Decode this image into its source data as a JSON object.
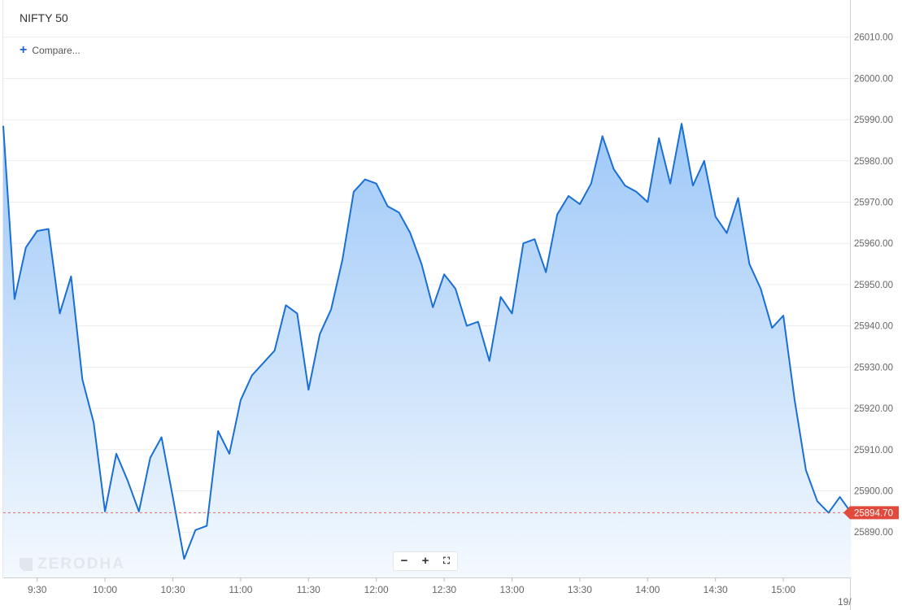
{
  "header": {
    "title": "NIFTY 50",
    "compare_label": "Compare..."
  },
  "watermark": "ZERODHA",
  "zoom_controls": {
    "zoom_out": "−",
    "zoom_in": "+",
    "fullscreen": "⛶"
  },
  "colors": {
    "line": "#1a6fd4",
    "fill_top": "#9ec8f8",
    "fill_bottom": "#f4f9fe",
    "last_price_marker": "#e0493b"
  },
  "chart_data": {
    "type": "area",
    "title": "NIFTY 50",
    "xlabel": "",
    "ylabel": "",
    "ylim": [
      25879,
      26019
    ],
    "yticks": [
      "26010.00",
      "26000.00",
      "25990.00",
      "25980.00",
      "25970.00",
      "25960.00",
      "25950.00",
      "25940.00",
      "25930.00",
      "25920.00",
      "25910.00",
      "25900.00",
      "25890.00"
    ],
    "xticks": [
      "9:30",
      "10:00",
      "10:30",
      "11:00",
      "11:30",
      "12:00",
      "12:30",
      "13:00",
      "13:30",
      "14:00",
      "14:30",
      "15:00"
    ],
    "x_next_label": "19/",
    "interval_minutes": 5,
    "start_time": "9:15",
    "series": [
      {
        "values": [
          25988.5,
          25946.5,
          25959,
          25963,
          25963.5,
          25943,
          25952,
          25927,
          25916.5,
          25895,
          25909,
          25902.5,
          25895,
          25908,
          25913,
          25898.5,
          25883.5,
          25890.5,
          25891.5,
          25914.5,
          25909,
          25922,
          25928,
          25931,
          25934,
          25945,
          25943,
          25924.5,
          25938,
          25944,
          25956,
          25972.5,
          25975.5,
          25974.5,
          25969,
          25967.5,
          25962.5,
          25955,
          25944.5,
          25952.5,
          25949,
          25940,
          25941,
          25931.5,
          25947,
          25943,
          25960,
          25961,
          25953,
          25967,
          25971.5,
          25969.5,
          25974.5,
          25986,
          25978,
          25974,
          25972.5,
          25970,
          25985.5,
          25974.5,
          25989,
          25974,
          25980,
          25966.5,
          25962.5,
          25971,
          25955,
          25949,
          25939.5,
          25942.5,
          25922,
          25905,
          25897.5,
          25894.7,
          25898.5,
          25894.7
        ]
      }
    ],
    "last_price": 25894.7,
    "last_price_label": "25894.70",
    "grid": true,
    "legend": "none"
  }
}
